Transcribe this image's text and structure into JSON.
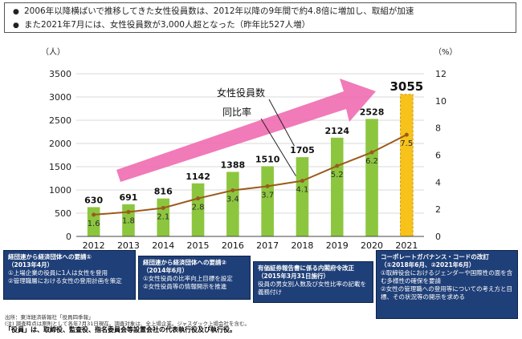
{
  "summary": {
    "lines": [
      "2006年以降横ばいで推移してきた女性役員数は、2012年以降の9年間で約4.8倍に増加し、取組が加速",
      "また2021年7月には、女性役員数が3,000人超となった（昨年比527人増）"
    ],
    "bullet": "●"
  },
  "chart_data": {
    "type": "bar",
    "title": "",
    "categories": [
      "2012",
      "2013",
      "2014",
      "2015",
      "2016",
      "2017",
      "2018",
      "2019",
      "2020",
      "2021"
    ],
    "series": [
      {
        "name": "女性役員数",
        "kind": "bar",
        "axis": "left",
        "values": [
          630,
          691,
          816,
          1142,
          1388,
          1510,
          1705,
          2124,
          2528,
          3055
        ]
      },
      {
        "name": "同比率",
        "kind": "line",
        "axis": "right",
        "values": [
          1.6,
          1.8,
          2.1,
          2.8,
          3.4,
          3.7,
          4.1,
          5.2,
          6.2,
          7.5
        ]
      }
    ],
    "ylabel_left": "（人）",
    "ylabel_right": "（%）",
    "ylim_left": [
      0,
      3500
    ],
    "ylim_right": [
      0,
      12
    ],
    "yticks_left": [
      "0",
      "500",
      "1000",
      "1500",
      "2000",
      "2500",
      "3000",
      "3500"
    ],
    "yticks_right": [
      "0",
      "2",
      "4",
      "6",
      "8",
      "10",
      "12"
    ],
    "highlight_category": "2021",
    "bar_color": "#8cc63f",
    "highlight_color": "#f7c21a",
    "line_color": "#9c5a1c",
    "arrow_color": "#f06bb0",
    "annotations": {
      "bar_label": "女性役員数",
      "line_label": "同比率"
    }
  },
  "notes": [
    {
      "title": "経団連から経済団体への要請①",
      "sub": "（2013年4月）",
      "items": [
        "①上場企業の役員に1人は女性を登用",
        "②管理職層における女性の登用計画を策定"
      ]
    },
    {
      "title": "経団連から経済団体への要請②",
      "sub": "（2014年6月）",
      "items": [
        "①女性役員の比率向上目標を設定",
        "②女性役員等の情報開示を推進"
      ]
    },
    {
      "title": "有価証券報告書に係る内閣府令改正",
      "sub": "（2015年3月31日施行）",
      "items": [
        "役員の男女別人数及び女性比率の記載を義務付け"
      ]
    },
    {
      "title": "コーポレートガバナンス・コードの改訂",
      "sub": "（①2018年6月、②2021年6月）",
      "items": [
        "①取締役会におけるジェンダーや国際性の面を含む多様性の確保を要請",
        "②女性の管理職への登用等についての考え方と目標、その状況等の開示を求める"
      ]
    }
  ],
  "source": {
    "line1": "出所：東洋経済新報社「役員四季報」",
    "line2": "(注) 調査時点は原則として各年7月31日現在。調査対象は、全上場企業。ジャスダック上場会社を含む。",
    "bold": "「役員」は、取締役、監査役、指名委員会等設置会社の代表執行役及び執行役。"
  }
}
